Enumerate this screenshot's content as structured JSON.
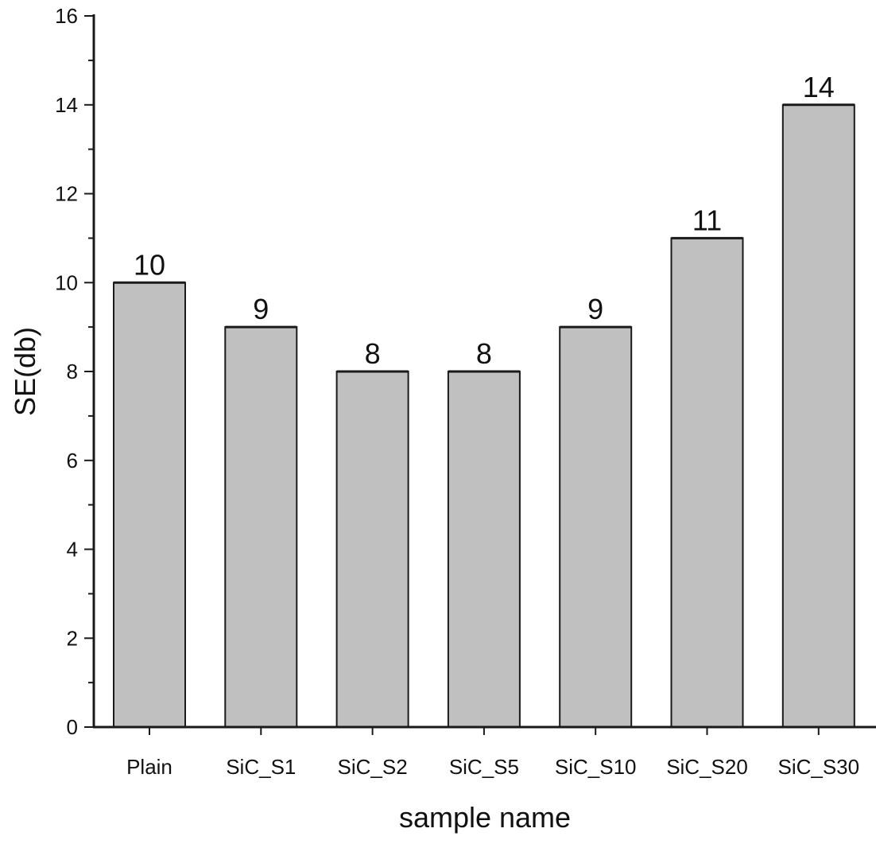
{
  "chart_data": {
    "type": "bar",
    "title": "",
    "xlabel": "sample name",
    "ylabel": "SE(db)",
    "categories": [
      "Plain",
      "SiC_S1",
      "SiC_S2",
      "SiC_S5",
      "SiC_S10",
      "SiC_S20",
      "SiC_S30"
    ],
    "values": [
      10,
      9,
      8,
      8,
      9,
      11,
      14
    ],
    "data_labels": [
      "10",
      "9",
      "8",
      "8",
      "9",
      "11",
      "14"
    ],
    "ylim": [
      0,
      16
    ],
    "yticks": [
      0,
      2,
      4,
      6,
      8,
      10,
      12,
      14,
      16
    ],
    "ytick_labels": [
      "0",
      "2",
      "4",
      "6",
      "8",
      "10",
      "12",
      "14",
      "16"
    ],
    "grid": false,
    "legend": "none",
    "colors": {
      "bar_fill": "#c0c0c0",
      "bar_stroke": "#1a1a1a",
      "axis": "#1a1a1a"
    }
  }
}
